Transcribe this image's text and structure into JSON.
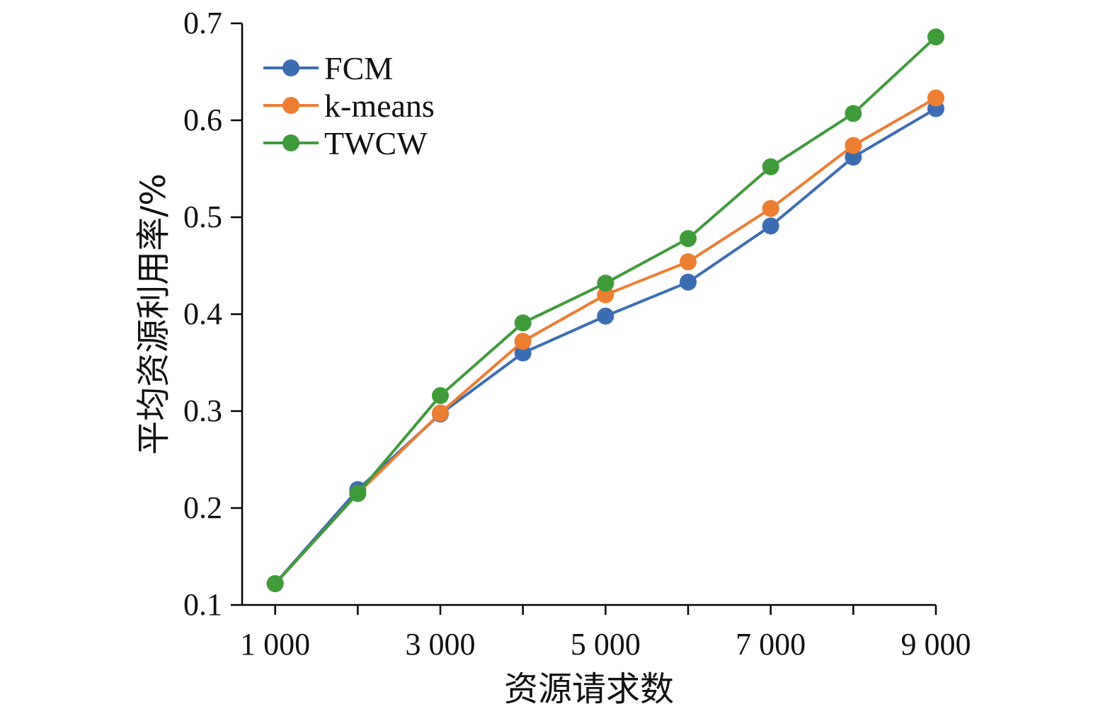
{
  "chart_data": {
    "type": "line",
    "x": [
      1000,
      2000,
      3000,
      4000,
      5000,
      6000,
      7000,
      8000,
      9000
    ],
    "xticks": [
      1000,
      2000,
      3000,
      4000,
      5000,
      6000,
      7000,
      8000,
      9000
    ],
    "xtick_labels": [
      "1 000",
      "",
      "3 000",
      "",
      "5 000",
      "",
      "7 000",
      "",
      "9 000"
    ],
    "yticks": [
      0.1,
      0.2,
      0.3,
      0.4,
      0.5,
      0.6,
      0.7
    ],
    "ytick_labels": [
      "0.1",
      "0.2",
      "0.3",
      "0.4",
      "0.5",
      "0.6",
      "0.7"
    ],
    "xlim": [
      600,
      9000
    ],
    "ylim": [
      0.1,
      0.7
    ],
    "xlabel": "资源请求数",
    "ylabel": "平均资源利用率/%",
    "grid": false,
    "legend_position": "top-left",
    "series": [
      {
        "name": "FCM",
        "color": "#3b6db3",
        "values": [
          0.122,
          0.219,
          0.297,
          0.36,
          0.398,
          0.433,
          0.491,
          0.562,
          0.612
        ]
      },
      {
        "name": "k-means",
        "color": "#ed7d31",
        "values": [
          0.122,
          0.215,
          0.298,
          0.372,
          0.42,
          0.454,
          0.509,
          0.574,
          0.623
        ]
      },
      {
        "name": "TWCW",
        "color": "#3f9b3a",
        "values": [
          0.122,
          0.215,
          0.316,
          0.391,
          0.432,
          0.478,
          0.552,
          0.607,
          0.686
        ]
      }
    ]
  }
}
